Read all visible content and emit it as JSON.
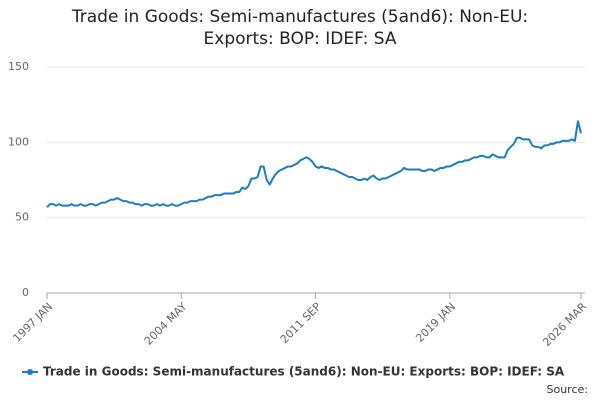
{
  "chart_data": {
    "type": "line",
    "title": "Trade in Goods: Semi-manufactures (5and6): Non-EU: Exports: BOP: IDEF: SA",
    "source": "Source:",
    "categories": [
      "1997 JAN",
      null,
      null,
      null,
      null,
      null,
      null,
      null,
      null,
      null,
      null,
      null,
      null,
      null,
      null,
      null,
      null,
      null,
      null,
      null,
      null,
      null,
      null,
      null,
      null,
      null,
      null,
      null,
      null,
      null,
      null,
      null,
      null,
      null,
      null,
      null,
      null,
      null,
      null,
      null,
      null,
      null,
      null,
      null,
      "2004 MAY",
      null,
      null,
      null,
      null,
      null,
      null,
      null,
      null,
      null,
      null,
      null,
      null,
      null,
      null,
      null,
      null,
      null,
      null,
      null,
      null,
      null,
      null,
      null,
      null,
      null,
      null,
      null,
      null,
      null,
      null,
      null,
      null,
      null,
      null,
      null,
      null,
      null,
      null,
      null,
      null,
      null,
      null,
      null,
      "2011 SEP",
      null,
      null,
      null,
      null,
      null,
      null,
      null,
      null,
      null,
      null,
      null,
      null,
      null,
      null,
      null,
      null,
      null,
      null,
      null,
      null,
      null,
      null,
      null,
      null,
      null,
      null,
      null,
      null,
      null,
      null,
      null,
      null,
      null,
      null,
      null,
      null,
      null,
      null,
      null,
      null,
      null,
      null,
      null,
      "2019 JAN",
      null,
      null,
      null,
      null,
      null,
      null,
      null,
      null,
      null,
      null,
      null,
      null,
      null,
      null,
      null,
      null,
      null,
      null,
      null,
      null,
      null,
      null,
      null,
      null,
      null,
      null,
      null,
      null,
      null,
      null,
      null,
      null,
      null,
      null,
      null,
      null,
      null,
      null,
      null,
      null,
      null,
      null,
      "2026 MAR"
    ],
    "series": [
      {
        "name": "Trade in Goods: Semi-manufactures (5and6): Non-EU: Exports: BOP: IDEF: SA",
        "color": "#1a7ec0",
        "values": [
          57,
          59,
          59,
          58,
          59,
          58,
          58,
          58,
          59,
          58,
          58,
          59,
          58,
          58,
          59,
          59,
          58,
          59,
          60,
          60,
          61,
          62,
          62,
          63,
          62,
          61,
          61,
          60,
          60,
          59,
          59,
          58,
          59,
          59,
          58,
          58,
          59,
          58,
          59,
          58,
          58,
          59,
          58,
          58,
          59,
          60,
          60,
          61,
          61,
          61,
          62,
          62,
          63,
          64,
          64,
          65,
          65,
          65,
          66,
          66,
          66,
          66,
          67,
          67,
          70,
          69,
          71,
          76,
          76,
          77,
          84,
          84,
          75,
          72,
          76,
          79,
          81,
          82,
          83,
          84,
          84,
          85,
          86,
          88,
          89,
          90,
          89,
          87,
          84,
          83,
          84,
          83,
          83,
          82,
          82,
          81,
          80,
          79,
          78,
          77,
          77,
          76,
          75,
          75,
          76,
          75,
          77,
          78,
          76,
          75,
          76,
          76,
          77,
          78,
          79,
          80,
          81,
          83,
          82,
          82,
          82,
          82,
          82,
          81,
          81,
          82,
          82,
          81,
          82,
          83,
          83,
          84,
          84,
          85,
          86,
          87,
          87,
          88,
          88,
          89,
          90,
          90,
          91,
          91,
          90,
          90,
          92,
          91,
          90,
          90,
          90,
          95,
          97,
          99,
          103,
          103,
          102,
          102,
          102,
          98,
          97,
          97,
          96,
          98,
          98,
          99,
          99,
          100,
          100,
          101,
          101,
          101,
          102,
          101,
          114,
          106
        ]
      }
    ],
    "ylim": [
      0,
      150
    ],
    "yticks": [
      0,
      50,
      100,
      150
    ],
    "grid": true
  }
}
